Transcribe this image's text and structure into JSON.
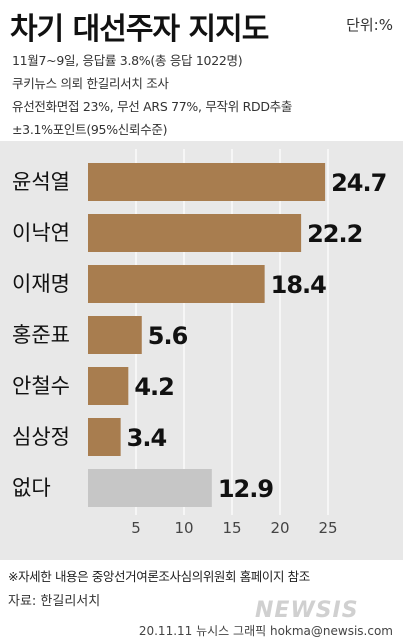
{
  "header": {
    "title": "차기 대선주자 지지도",
    "unit": "단위:%",
    "survey_lines": [
      "11월7~9일, 응답률 3.8%(총 응답 1022명)",
      "쿠키뉴스 의뢰 한길리서치 조사",
      "유선전화면접 23%, 무선 ARS 77%, 무작위 RDD추출",
      "±3.1%포인트(95%신뢰수준)"
    ]
  },
  "chart_data": {
    "type": "bar",
    "orientation": "horizontal",
    "categories": [
      "윤석열",
      "이낙연",
      "이재명",
      "홍준표",
      "안철수",
      "심상정",
      "없다"
    ],
    "values": [
      24.7,
      22.2,
      18.4,
      5.6,
      4.2,
      3.4,
      12.9
    ],
    "value_labels": [
      "24.7",
      "22.2",
      "18.4",
      "5.6",
      "4.2",
      "3.4",
      "12.9"
    ],
    "xticks": [
      5,
      10,
      15,
      20,
      25
    ],
    "xlim": [
      0,
      25
    ],
    "grid": true,
    "colors": {
      "bar": "#a87d4f",
      "none_bar": "#c6c6c6",
      "background": "#e8e8e8",
      "grid": "#ffffff"
    }
  },
  "footer": {
    "note": "※자세한 내용은 중앙선거여론조사심의위원회 홈페이지 참조",
    "source": "자료: 한길리서치",
    "watermark": "NEWSIS",
    "credit": "20.11.11 뉴시스 그래픽 hokma@newsis.com"
  }
}
